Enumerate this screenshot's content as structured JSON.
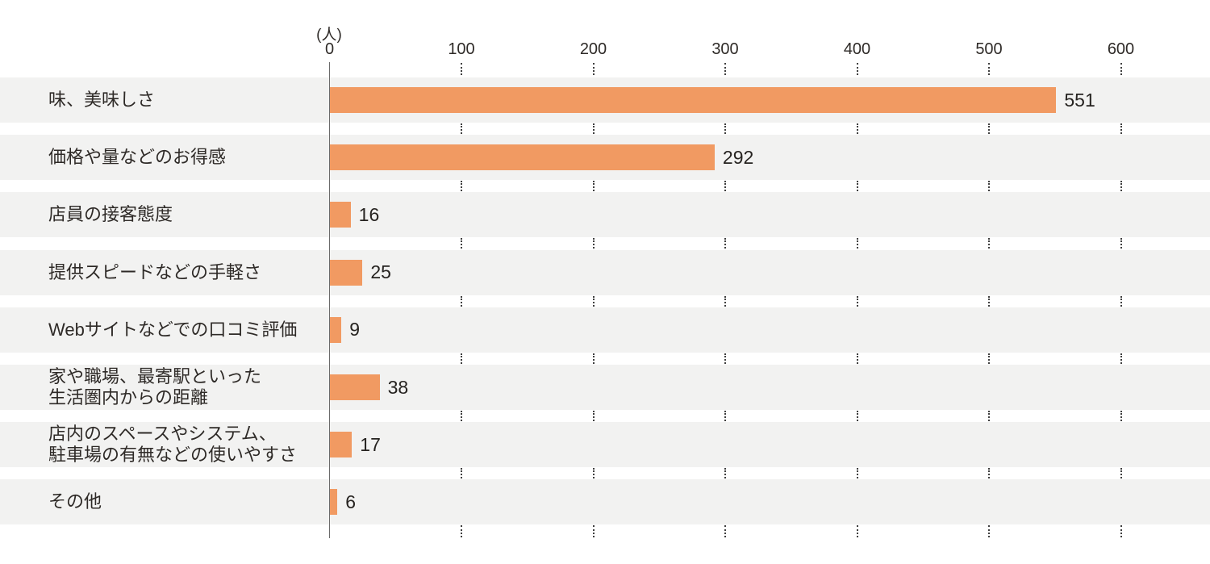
{
  "chart_data": {
    "type": "bar",
    "orientation": "horizontal",
    "title": "",
    "unit_label": "(人)",
    "xlabel": "",
    "ylabel": "",
    "x_ticks": [
      0,
      100,
      200,
      300,
      400,
      500,
      600
    ],
    "xlim": [
      0,
      665
    ],
    "grid": "dotted vertical gridlines shown only in white gaps between row bands",
    "legend": "none",
    "bar_color": "#F19A62",
    "row_band_color": "#F2F2F1",
    "text_color": "#2E2A27",
    "categories": [
      "味、美味しさ",
      "価格や量などのお得感",
      "店員の接客態度",
      "提供スピードなどの手軽さ",
      "Webサイトなどでの口コミ評価",
      "家や職場、最寄駅といった\n生活圏内からの距離",
      "店内のスペースやシステム、\n駐車場の有無などの使いやすさ",
      "その他"
    ],
    "values": [
      551,
      292,
      16,
      25,
      9,
      38,
      17,
      6
    ]
  }
}
